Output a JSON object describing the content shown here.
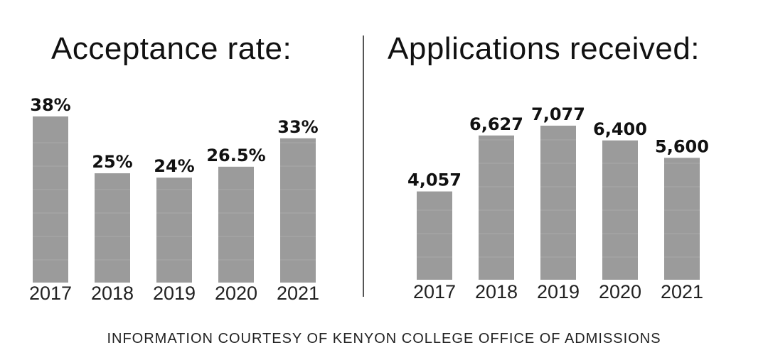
{
  "credit": "INFORMATION COURTESY OF KENYON COLLEGE OFFICE OF ADMISSIONS",
  "colors": {
    "bar": "#9b9b9b",
    "text": "#111111",
    "divider": "#555555"
  },
  "chart_data": [
    {
      "type": "bar",
      "title": "Acceptance rate:",
      "categories": [
        "2017",
        "2018",
        "2019",
        "2020",
        "2021"
      ],
      "values": [
        38,
        25,
        24,
        26.5,
        33
      ],
      "value_labels": [
        "38%",
        "25%",
        "24%",
        "26.5%",
        "33%"
      ],
      "xlabel": "",
      "ylabel": "",
      "ylim": [
        0,
        38
      ],
      "grid": false,
      "legend": "none"
    },
    {
      "type": "bar",
      "title": "Applications received:",
      "categories": [
        "2017",
        "2018",
        "2019",
        "2020",
        "2021"
      ],
      "values": [
        4057,
        6627,
        7077,
        6400,
        5600
      ],
      "value_labels": [
        "4,057",
        "6,627",
        "7,077",
        "6,400",
        "5,600"
      ],
      "xlabel": "",
      "ylabel": "",
      "ylim": [
        0,
        7077
      ],
      "grid": false,
      "legend": "none"
    }
  ]
}
